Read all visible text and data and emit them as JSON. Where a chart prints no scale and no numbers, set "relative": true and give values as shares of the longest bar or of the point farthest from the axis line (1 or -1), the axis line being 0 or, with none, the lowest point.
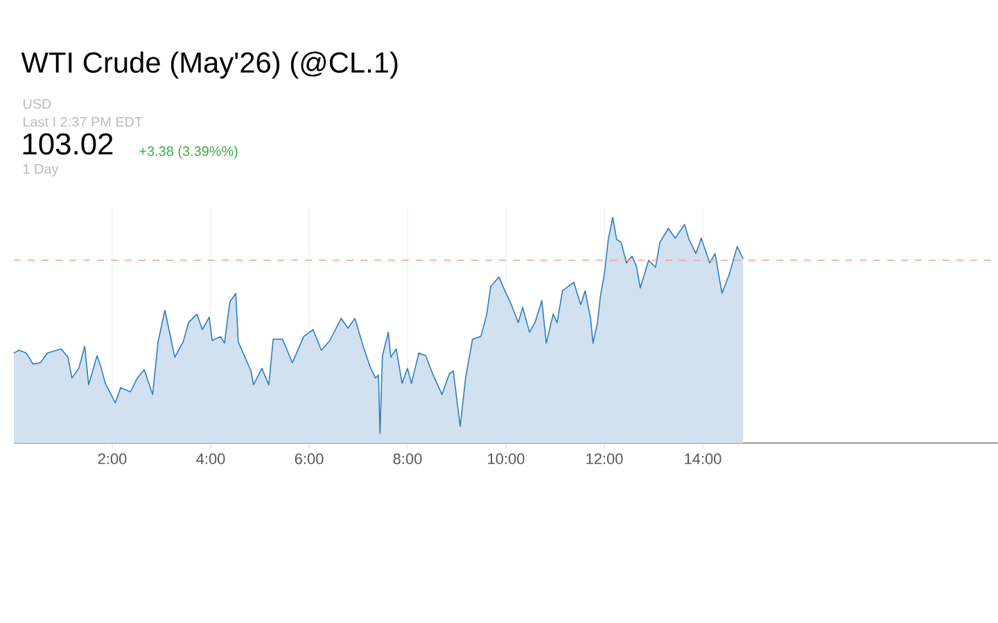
{
  "chart_data": {
    "type": "area",
    "title": "WTI Crude (May'26) (@CL.1)",
    "annotations": [
      "USD",
      "Last I 2:37 PM EDT",
      "103.02",
      "+3.38 (3.39%%)",
      "1 Day"
    ],
    "relative": true,
    "color": "#2f7bbf",
    "grid": "x",
    "xlim": [
      0,
      20
    ],
    "xticks": [
      {
        "value": 2,
        "label": "2:00"
      },
      {
        "value": 4,
        "label": "4:00"
      },
      {
        "value": 6,
        "label": "6:00"
      },
      {
        "value": 8,
        "label": "8:00"
      },
      {
        "value": 10,
        "label": "10:00"
      },
      {
        "value": 12,
        "label": "12:00"
      },
      {
        "value": 14,
        "label": "14:00"
      }
    ],
    "ref_lines": [
      {
        "axis": "y",
        "value": 0.81,
        "color": "#f0a090",
        "line_style": "dashed"
      }
    ],
    "x": [
      0.0,
      0.11,
      0.25,
      0.39,
      0.54,
      0.68,
      0.96,
      1.1,
      1.18,
      1.32,
      1.44,
      1.52,
      1.69,
      1.77,
      1.86,
      2.06,
      2.17,
      2.37,
      2.51,
      2.65,
      2.82,
      2.93,
      3.07,
      3.27,
      3.44,
      3.55,
      3.72,
      3.83,
      3.97,
      4.03,
      4.2,
      4.28,
      4.39,
      4.51,
      4.56,
      4.82,
      4.87,
      5.04,
      5.18,
      5.27,
      5.46,
      5.66,
      5.89,
      6.08,
      6.25,
      6.42,
      6.65,
      6.79,
      6.93,
      7.1,
      7.24,
      7.35,
      7.41,
      7.44,
      7.49,
      7.61,
      7.66,
      7.77,
      7.89,
      8.0,
      8.08,
      8.23,
      8.37,
      8.51,
      8.7,
      8.85,
      8.93,
      9.07,
      9.18,
      9.32,
      9.49,
      9.61,
      9.69,
      9.86,
      9.94,
      10.11,
      10.25,
      10.34,
      10.48,
      10.59,
      10.73,
      10.82,
      10.96,
      11.04,
      11.15,
      11.38,
      11.52,
      11.61,
      11.72,
      11.77,
      11.86,
      11.92,
      12.0,
      12.08,
      12.17,
      12.25,
      12.34,
      12.45,
      12.56,
      12.65,
      12.73,
      12.9,
      13.04,
      13.13,
      13.3,
      13.44,
      13.63,
      13.72,
      13.86,
      13.97,
      14.14,
      14.25,
      14.39,
      14.54,
      14.7,
      14.82
    ],
    "values": [
      0.399,
      0.411,
      0.399,
      0.35,
      0.356,
      0.399,
      0.417,
      0.38,
      0.288,
      0.331,
      0.429,
      0.258,
      0.387,
      0.337,
      0.264,
      0.178,
      0.245,
      0.227,
      0.288,
      0.325,
      0.215,
      0.448,
      0.589,
      0.38,
      0.448,
      0.534,
      0.571,
      0.503,
      0.558,
      0.454,
      0.472,
      0.442,
      0.626,
      0.663,
      0.448,
      0.319,
      0.258,
      0.331,
      0.258,
      0.46,
      0.46,
      0.356,
      0.472,
      0.503,
      0.411,
      0.454,
      0.552,
      0.509,
      0.552,
      0.429,
      0.337,
      0.288,
      0.301,
      0.043,
      0.387,
      0.491,
      0.38,
      0.417,
      0.264,
      0.331,
      0.264,
      0.399,
      0.387,
      0.307,
      0.215,
      0.307,
      0.319,
      0.074,
      0.288,
      0.46,
      0.472,
      0.571,
      0.693,
      0.736,
      0.693,
      0.613,
      0.534,
      0.601,
      0.491,
      0.534,
      0.632,
      0.442,
      0.571,
      0.534,
      0.675,
      0.712,
      0.613,
      0.675,
      0.552,
      0.442,
      0.534,
      0.65,
      0.748,
      0.902,
      1.0,
      0.902,
      0.89,
      0.798,
      0.828,
      0.785,
      0.687,
      0.81,
      0.779,
      0.89,
      0.951,
      0.908,
      0.969,
      0.902,
      0.84,
      0.908,
      0.798,
      0.84,
      0.663,
      0.748,
      0.871,
      0.816
    ]
  }
}
